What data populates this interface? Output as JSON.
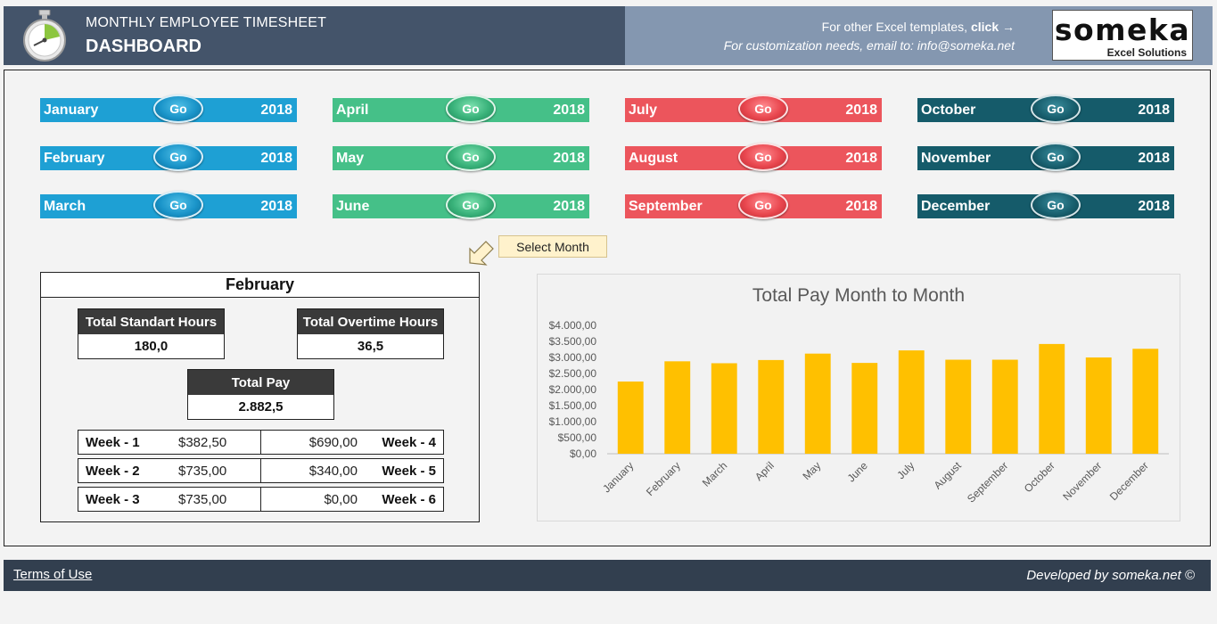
{
  "header": {
    "subtitle": "MONTHLY EMPLOYEE TIMESHEET",
    "title": "DASHBOARD",
    "promo_text": "For other Excel templates, ",
    "promo_link": "click →",
    "custom_text": "For customization needs, email to: info@someka.net",
    "brand_name": "someka",
    "brand_sub": "Excel Solutions",
    "icon": "stopwatch-icon"
  },
  "months": [
    {
      "name": "January",
      "year": "2018",
      "go": "Go",
      "color": "#1ea0d4"
    },
    {
      "name": "February",
      "year": "2018",
      "go": "Go",
      "color": "#1ea0d4"
    },
    {
      "name": "March",
      "year": "2018",
      "go": "Go",
      "color": "#1ea0d4"
    },
    {
      "name": "April",
      "year": "2018",
      "go": "Go",
      "color": "#45c088"
    },
    {
      "name": "May",
      "year": "2018",
      "go": "Go",
      "color": "#45c088"
    },
    {
      "name": "June",
      "year": "2018",
      "go": "Go",
      "color": "#45c088"
    },
    {
      "name": "July",
      "year": "2018",
      "go": "Go",
      "color": "#ec555c"
    },
    {
      "name": "August",
      "year": "2018",
      "go": "Go",
      "color": "#ec555c"
    },
    {
      "name": "September",
      "year": "2018",
      "go": "Go",
      "color": "#ec555c"
    },
    {
      "name": "October",
      "year": "2018",
      "go": "Go",
      "color": "#155b6a"
    },
    {
      "name": "November",
      "year": "2018",
      "go": "Go",
      "color": "#155b6a"
    },
    {
      "name": "December",
      "year": "2018",
      "go": "Go",
      "color": "#155b6a"
    }
  ],
  "hint": {
    "label": "Select Month",
    "icon": "arrow-pointer-icon"
  },
  "summary": {
    "month": "February",
    "standard_label": "Total Standart Hours",
    "standard_value": "180,0",
    "overtime_label": "Total Overtime Hours",
    "overtime_value": "36,5",
    "pay_label": "Total Pay",
    "pay_value": "2.882,5",
    "weeks": [
      {
        "left_name": "Week - 1",
        "left_value": "$382,50",
        "right_value": "$690,00",
        "right_name": "Week - 4"
      },
      {
        "left_name": "Week - 2",
        "left_value": "$735,00",
        "right_value": "$340,00",
        "right_name": "Week - 5"
      },
      {
        "left_name": "Week - 3",
        "left_value": "$735,00",
        "right_value": "$0,00",
        "right_name": "Week - 6"
      }
    ]
  },
  "chart_data": {
    "type": "bar",
    "title": "Total Pay Month to Month",
    "xlabel": "",
    "ylabel": "",
    "categories": [
      "January",
      "February",
      "March",
      "April",
      "May",
      "June",
      "July",
      "August",
      "September",
      "October",
      "November",
      "December"
    ],
    "values": [
      2250,
      2880,
      2820,
      2920,
      3120,
      2830,
      3220,
      2930,
      2930,
      3420,
      3000,
      3270
    ],
    "ylim": [
      0,
      4000
    ],
    "yticks": [
      "$0,00",
      "$500,00",
      "$1.000,00",
      "$1.500,00",
      "$2.000,00",
      "$2.500,00",
      "$3.000,00",
      "$3.500,00",
      "$4.000,00"
    ],
    "bar_color": "#ffc000",
    "grid": false,
    "legend": "none"
  },
  "footer": {
    "terms": "Terms of Use",
    "credit": "Developed by someka.net ©"
  }
}
